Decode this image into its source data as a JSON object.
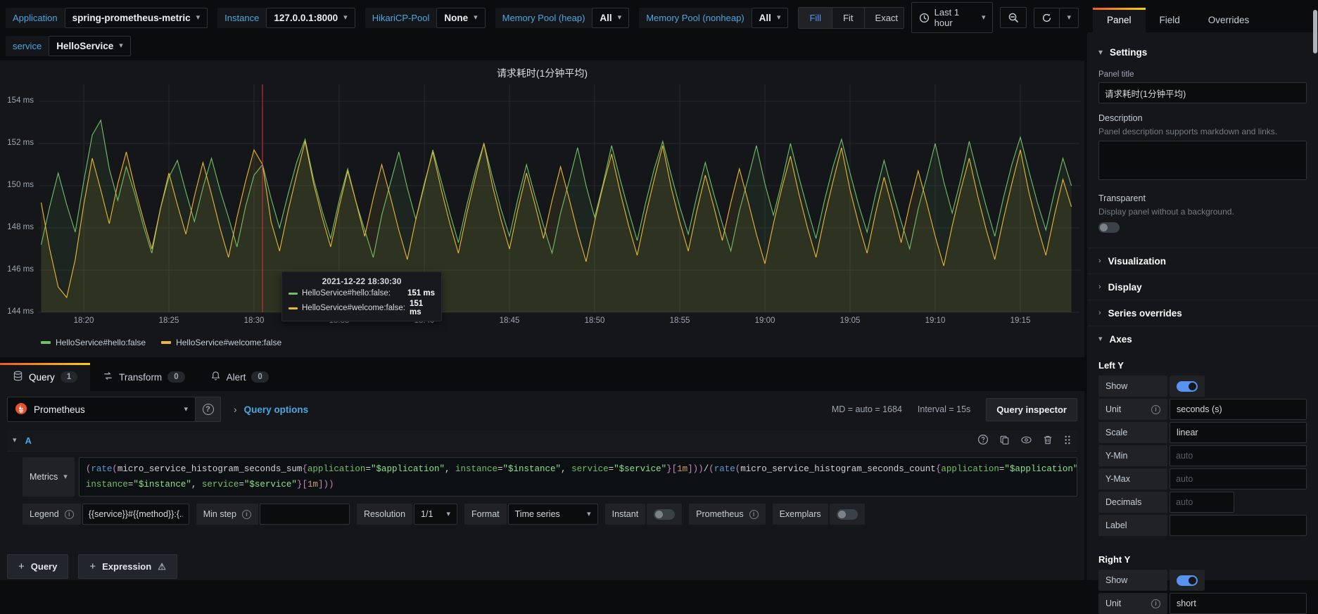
{
  "colors": {
    "accent_blue": "#4ba7e0",
    "toggle_on": "#5794f2",
    "active_tab_gradient": [
      "#f05a28",
      "#fbca0a"
    ],
    "series_green": "#73bf69",
    "series_yellow": "#eab839",
    "crosshair_red": "#e02f44"
  },
  "icons": {
    "chevron_down": "▾",
    "chevron_right": "›",
    "chevron_expanded": "▾",
    "info": "i",
    "help": "?",
    "warning": "⚠",
    "plus": "+"
  },
  "topbar": {
    "variables": [
      {
        "label": "Application",
        "value": "spring-prometheus-metric"
      },
      {
        "label": "Instance",
        "value": "127.0.0.1:8000"
      },
      {
        "label": "HikariCP-Pool",
        "value": "None"
      },
      {
        "label": "Memory Pool (heap)",
        "value": "All"
      },
      {
        "label": "Memory Pool (nonheap)",
        "value": "All"
      },
      {
        "label": "service",
        "value": "HelloService"
      }
    ],
    "view_modes": {
      "fill": "Fill",
      "fit": "Fit",
      "exact": "Exact",
      "active": "Fill"
    },
    "time_picker": {
      "label": "Last 1 hour"
    }
  },
  "chart": {
    "tooltip": {
      "time": "2021-12-22 18:30:30",
      "rows": [
        {
          "name": "HelloService#hello:false:",
          "value": "151 ms"
        },
        {
          "name": "HelloService#welcome:false:",
          "value": "151 ms"
        }
      ]
    }
  },
  "chart_data": {
    "type": "line",
    "title": "请求耗时(1分钟平均)",
    "ylabel": "",
    "xlabel": "",
    "ylim": [
      143.8,
      154.8
    ],
    "y_tick_values": [
      154,
      152,
      150,
      148,
      146,
      144
    ],
    "y_ticks": [
      "154 ms",
      "152 ms",
      "150 ms",
      "148 ms",
      "146 ms",
      "144 ms"
    ],
    "x_ticks": [
      "18:20",
      "18:25",
      "18:30",
      "18:35",
      "18:40",
      "18:45",
      "18:50",
      "18:55",
      "19:00",
      "19:05",
      "19:10",
      "19:15"
    ],
    "x_start": "18:17:30",
    "x_step_seconds": 30,
    "crosshair_time": "18:30:30",
    "grid": true,
    "legend_position": "bottom",
    "unit": "ms",
    "series": [
      {
        "name": "HelloService#hello:false",
        "color": "#73bf69",
        "values": [
          147.2,
          149.0,
          150.6,
          149.1,
          147.8,
          150.2,
          152.4,
          153.1,
          150.8,
          149.3,
          150.9,
          149.6,
          148.1,
          146.8,
          148.9,
          150.4,
          151.2,
          149.7,
          148.3,
          149.9,
          151.3,
          149.8,
          148.5,
          147.1,
          149.0,
          150.5,
          151.0,
          149.4,
          148.0,
          149.6,
          151.1,
          152.2,
          150.3,
          148.8,
          147.5,
          149.3,
          150.8,
          149.2,
          147.9,
          146.6,
          148.6,
          150.1,
          151.6,
          149.9,
          148.4,
          150.0,
          151.7,
          150.2,
          148.7,
          147.3,
          149.1,
          150.7,
          152.0,
          150.4,
          148.9,
          147.6,
          149.4,
          151.0,
          149.5,
          148.1,
          146.8,
          148.7,
          150.2,
          151.8,
          150.0,
          148.5,
          150.1,
          151.9,
          150.3,
          148.8,
          147.4,
          149.2,
          150.8,
          152.1,
          150.5,
          149.0,
          147.7,
          149.5,
          151.1,
          149.6,
          148.2,
          146.9,
          148.8,
          150.3,
          151.9,
          150.1,
          148.6,
          150.2,
          152.0,
          150.4,
          148.9,
          147.5,
          149.3,
          150.9,
          152.2,
          150.6,
          149.1,
          147.8,
          149.6,
          151.2,
          149.7,
          148.3,
          147.0,
          148.9,
          150.4,
          152.0,
          150.2,
          148.7,
          150.3,
          152.1,
          150.5,
          149.0,
          147.6,
          149.4,
          151.0,
          152.3,
          150.7,
          149.2,
          147.9,
          149.7,
          151.3,
          150.0
        ]
      },
      {
        "name": "HelloService#welcome:false",
        "color": "#eab839",
        "values": [
          149.2,
          147.0,
          145.2,
          144.7,
          146.5,
          149.1,
          151.3,
          149.8,
          148.2,
          150.1,
          151.6,
          149.9,
          148.4,
          147.0,
          148.9,
          150.6,
          149.1,
          147.7,
          149.5,
          151.1,
          149.6,
          148.0,
          146.6,
          148.5,
          150.2,
          151.7,
          151.0,
          148.3,
          146.9,
          148.8,
          150.5,
          152.1,
          150.1,
          148.5,
          147.1,
          149.0,
          150.7,
          149.2,
          147.6,
          149.4,
          151.0,
          149.5,
          147.9,
          146.5,
          148.4,
          150.1,
          151.6,
          149.8,
          148.2,
          146.8,
          148.7,
          150.4,
          152.0,
          150.0,
          148.4,
          147.0,
          148.9,
          150.6,
          149.1,
          147.5,
          149.3,
          150.9,
          149.4,
          147.8,
          146.4,
          148.3,
          150.0,
          151.5,
          149.7,
          148.1,
          146.7,
          148.6,
          150.3,
          151.9,
          149.9,
          148.3,
          146.9,
          148.8,
          150.5,
          149.0,
          147.4,
          149.2,
          150.8,
          149.3,
          147.7,
          146.3,
          148.2,
          149.9,
          151.4,
          149.6,
          148.0,
          146.6,
          148.5,
          150.2,
          151.8,
          149.8,
          148.2,
          146.8,
          148.7,
          150.4,
          148.9,
          147.3,
          149.1,
          150.7,
          149.2,
          147.6,
          146.2,
          148.1,
          149.8,
          151.3,
          149.5,
          147.9,
          146.5,
          148.4,
          150.1,
          151.7,
          149.7,
          148.1,
          146.7,
          148.6,
          150.3,
          149.0
        ]
      }
    ]
  },
  "query_section": {
    "tabs": [
      {
        "label": "Query",
        "badge": "1"
      },
      {
        "label": "Transform",
        "badge": "0"
      },
      {
        "label": "Alert",
        "badge": "0"
      }
    ],
    "toolbar": {
      "datasource": "Prometheus",
      "options_label": "Query options",
      "md_info": "MD = auto = 1684",
      "interval_info": "Interval = 15s",
      "inspector_label": "Query inspector"
    },
    "query_a": {
      "ref_id": "A",
      "mode_label": "Metrics"
    },
    "options": {
      "legend_label": "Legend",
      "legend_value": "{{service}}#{{method}}:{...",
      "min_step_label": "Min step",
      "resolution_label": "Resolution",
      "resolution_value": "1/1",
      "format_label": "Format",
      "format_value": "Time series",
      "instant_label": "Instant",
      "prometheus_label": "Prometheus",
      "exemplars_label": "Exemplars"
    },
    "add_query_label": "Query",
    "add_expression_label": "Expression"
  },
  "expr": {
    "line1": [
      [
        "p",
        "("
      ],
      [
        "f",
        "rate"
      ],
      [
        "p",
        "("
      ],
      [
        "m",
        "micro_service_histogram_seconds_sum"
      ],
      [
        "p",
        "{"
      ],
      [
        "l",
        "application"
      ],
      [
        "o",
        "="
      ],
      [
        "s",
        "\"$application\""
      ],
      [
        "o",
        ", "
      ],
      [
        "l",
        "instance"
      ],
      [
        "o",
        "="
      ],
      [
        "s",
        "\"$instance\""
      ],
      [
        "o",
        ", "
      ],
      [
        "l",
        "service"
      ],
      [
        "o",
        "="
      ],
      [
        "s",
        "\"$service\""
      ],
      [
        "p",
        "}"
      ],
      [
        "b",
        "["
      ],
      [
        "d",
        "1m"
      ],
      [
        "b",
        "]"
      ],
      [
        "p",
        "))"
      ],
      [
        "o",
        "/"
      ],
      [
        "p",
        "("
      ],
      [
        "f",
        "rate"
      ],
      [
        "p",
        "("
      ],
      [
        "m",
        "micro_service_histogram_seconds_count"
      ],
      [
        "p",
        "{"
      ],
      [
        "l",
        "application"
      ],
      [
        "o",
        "="
      ],
      [
        "s",
        "\"$application\""
      ],
      [
        "o",
        ","
      ]
    ],
    "line2": [
      [
        "l",
        "instance"
      ],
      [
        "o",
        "="
      ],
      [
        "s",
        "\"$instance\""
      ],
      [
        "o",
        ", "
      ],
      [
        "l",
        "service"
      ],
      [
        "o",
        "="
      ],
      [
        "s",
        "\"$service\""
      ],
      [
        "p",
        "}"
      ],
      [
        "b",
        "["
      ],
      [
        "d",
        "1m"
      ],
      [
        "b",
        "]"
      ],
      [
        "p",
        "))"
      ]
    ]
  },
  "sidebar": {
    "tabs": [
      "Panel",
      "Field",
      "Overrides"
    ],
    "settings": {
      "title": "Settings",
      "panel_title_label": "Panel title",
      "panel_title_value": "请求耗时(1分钟平均)",
      "description_label": "Description",
      "description_help": "Panel description supports markdown and links.",
      "transparent_label": "Transparent",
      "transparent_help": "Display panel without a background."
    },
    "sections": [
      "Visualization",
      "Display",
      "Series overrides"
    ],
    "axes": {
      "title": "Axes",
      "left_y": {
        "title": "Left Y",
        "show_label": "Show",
        "unit_label": "Unit",
        "unit_value": "seconds (s)",
        "scale_label": "Scale",
        "scale_value": "linear",
        "ymin_label": "Y-Min",
        "ymax_label": "Y-Max",
        "decimals_label": "Decimals",
        "auto_placeholder": "auto",
        "label_label": "Label"
      },
      "right_y": {
        "title": "Right Y",
        "show_label": "Show",
        "unit_label": "Unit",
        "unit_value": "short"
      }
    }
  }
}
